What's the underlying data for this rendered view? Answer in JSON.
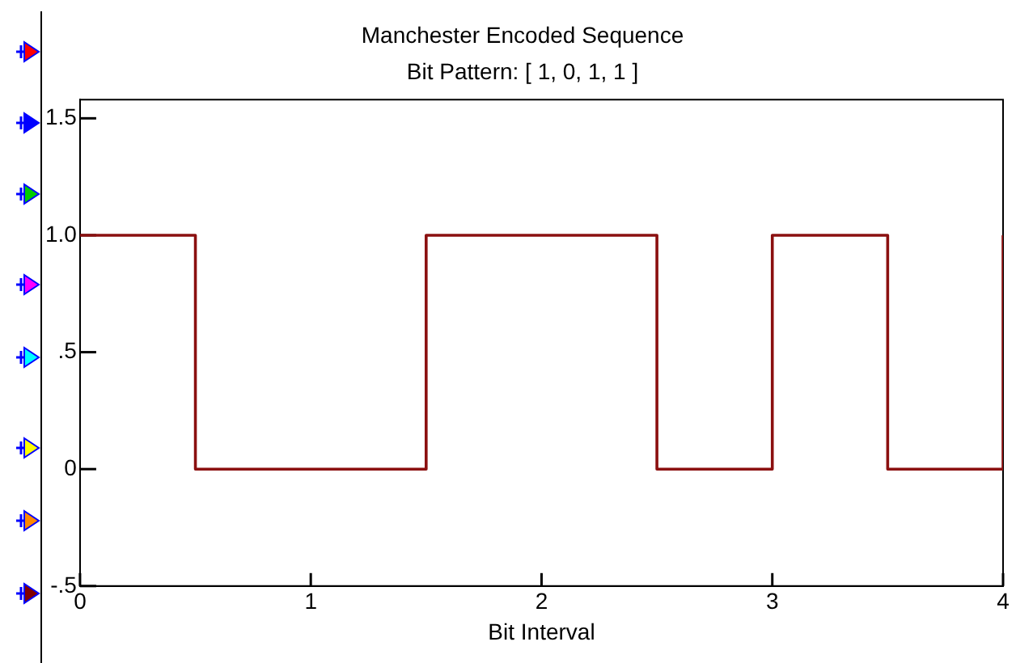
{
  "chart_data": {
    "type": "step",
    "title": "Manchester Encoded Sequence",
    "subtitle": "Bit Pattern: [ 1, 0, 1, 1 ]",
    "xlabel": "Bit Interval",
    "x": [
      0,
      0.5,
      1.5,
      2.5,
      3,
      3.5,
      4
    ],
    "series": [
      {
        "color": "#8b1010",
        "values": [
          1,
          0,
          1,
          0,
          1,
          0,
          1
        ]
      }
    ],
    "xlim": [
      0,
      4
    ],
    "xticks": [
      0,
      1,
      2,
      3,
      4
    ],
    "ylim": [
      -0.5,
      1.58
    ],
    "yticks": [
      {
        "value": -0.5,
        "label": "-.5"
      },
      0,
      {
        "value": 0.5,
        "label": ".5"
      },
      {
        "value": 1,
        "label": "1.0"
      },
      {
        "value": 1.5,
        "label": "1.5"
      }
    ],
    "grid": false,
    "legend": false,
    "marker": "none",
    "line_style": "solid"
  }
}
